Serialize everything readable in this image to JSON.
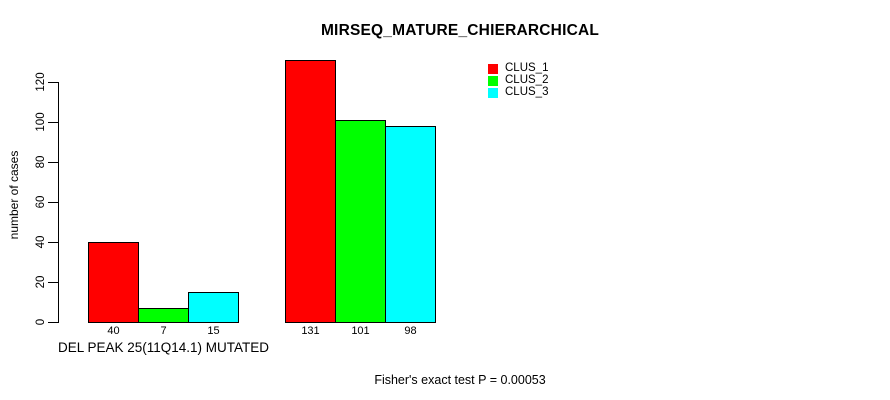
{
  "chart_data": {
    "type": "bar",
    "title": "MIRSEQ_MATURE_CHIERARCHICAL",
    "ylabel": "number of cases",
    "xlabel": "",
    "yticks": [
      0,
      20,
      40,
      60,
      80,
      100,
      120
    ],
    "ylim": [
      0,
      131
    ],
    "grid": false,
    "legend_position": "top-right",
    "categories": [
      "DEL PEAK 25(11Q14.1) MUTATED",
      ""
    ],
    "series": [
      {
        "name": "CLUS_1",
        "color": "#ff0000",
        "values": [
          40,
          131
        ]
      },
      {
        "name": "CLUS_2",
        "color": "#00ff00",
        "values": [
          7,
          101
        ]
      },
      {
        "name": "CLUS_3",
        "color": "#00ffff",
        "values": [
          15,
          98
        ]
      }
    ],
    "annotation": "Fisher's exact test P = 0.00053"
  },
  "colors": {
    "background": "#ffffff",
    "axis": "#000000",
    "text": "#000000"
  }
}
